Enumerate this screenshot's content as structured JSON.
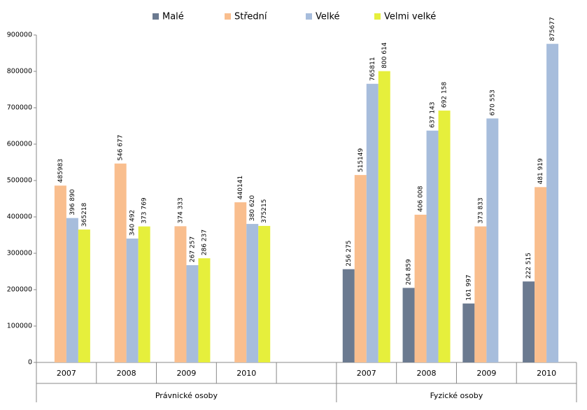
{
  "chart_data": {
    "type": "bar",
    "categories": [
      "2007",
      "2008",
      "2009",
      "2010",
      null,
      "2007",
      "2008",
      "2009",
      "2010"
    ],
    "groups": [
      "Právnické osoby",
      "Fyzické osoby"
    ],
    "series": [
      {
        "name": "Malé",
        "color": "#6b7a90",
        "values": [
          null,
          null,
          null,
          null,
          null,
          256275,
          204859,
          161997,
          222515
        ],
        "value_labels": [
          null,
          null,
          null,
          null,
          null,
          "256 275",
          "204 859",
          "161 997",
          "222 515"
        ]
      },
      {
        "name": "Střední",
        "color": "#f9be8e",
        "values": [
          485983,
          546677,
          374333,
          440141,
          null,
          515149,
          406008,
          373833,
          481919
        ],
        "value_labels": [
          "485983",
          "546 677",
          "374 333",
          "440141",
          null,
          "515149",
          "406 008",
          "373 833",
          "481 919"
        ]
      },
      {
        "name": "Velké",
        "color": "#a7bddc",
        "values": [
          396890,
          340492,
          267257,
          380620,
          null,
          765811,
          637143,
          670553,
          875677
        ],
        "value_labels": [
          "396 890",
          "340 492",
          "267 257",
          "380 620",
          null,
          "765811",
          "637 143",
          "670 553",
          "875677"
        ]
      },
      {
        "name": "Velmi velké",
        "color": "#e6ef3c",
        "values": [
          365218,
          373769,
          286237,
          375215,
          null,
          800614,
          692158,
          null,
          null
        ],
        "value_labels": [
          "365218",
          "373 769",
          "286 237",
          "375215",
          null,
          "800 614",
          "692 158",
          null,
          null
        ]
      }
    ],
    "ylim": [
      0,
      900000
    ],
    "yticks": [
      0,
      100000,
      200000,
      300000,
      400000,
      500000,
      600000,
      700000,
      800000,
      900000
    ],
    "grid": false
  }
}
